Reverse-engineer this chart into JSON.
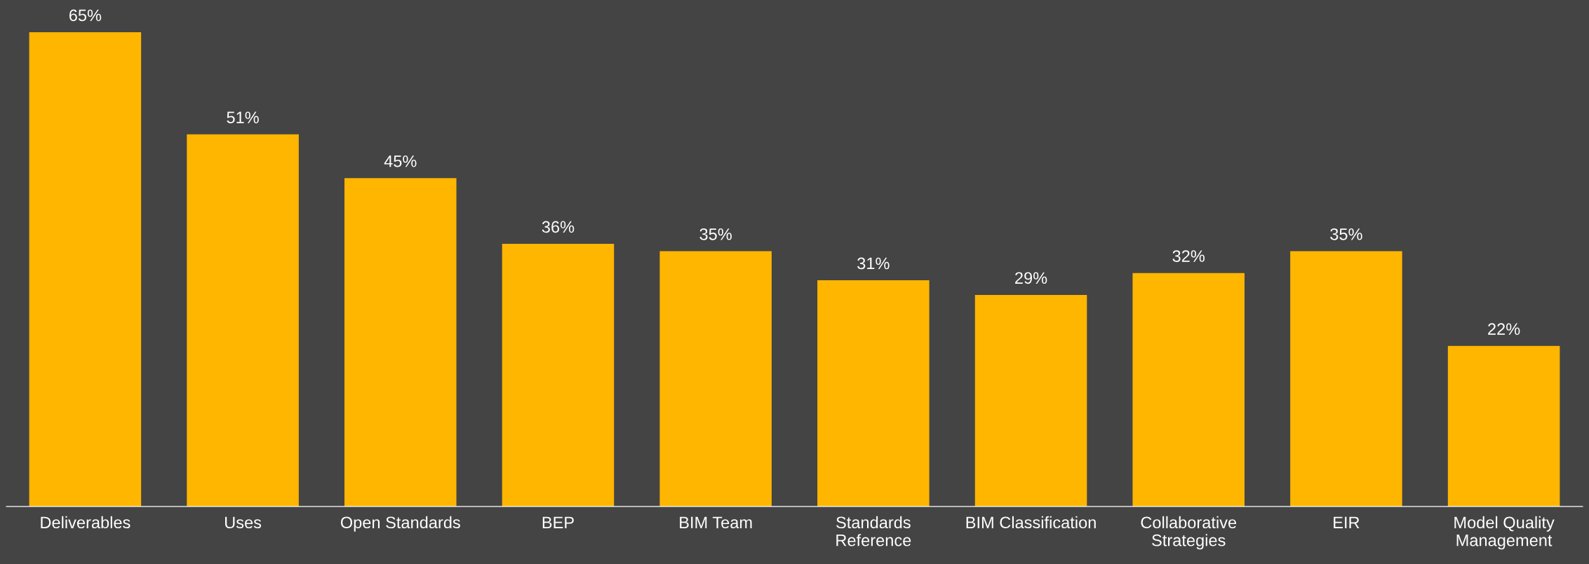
{
  "chart_data": {
    "type": "bar",
    "categories": [
      "Deliverables",
      "Uses",
      "Open Standards",
      "BEP",
      "BIM Team",
      "Standards\nReference",
      "BIM Classification",
      "Collaborative\nStrategies",
      "EIR",
      "Model Quality\nManagement"
    ],
    "values": [
      65,
      51,
      45,
      36,
      35,
      31,
      29,
      32,
      35,
      22
    ],
    "value_labels": [
      "65%",
      "51%",
      "45%",
      "36%",
      "35%",
      "31%",
      "29%",
      "32%",
      "35%",
      "22%"
    ],
    "color": "#ffb600",
    "grid": false,
    "legend": false
  }
}
